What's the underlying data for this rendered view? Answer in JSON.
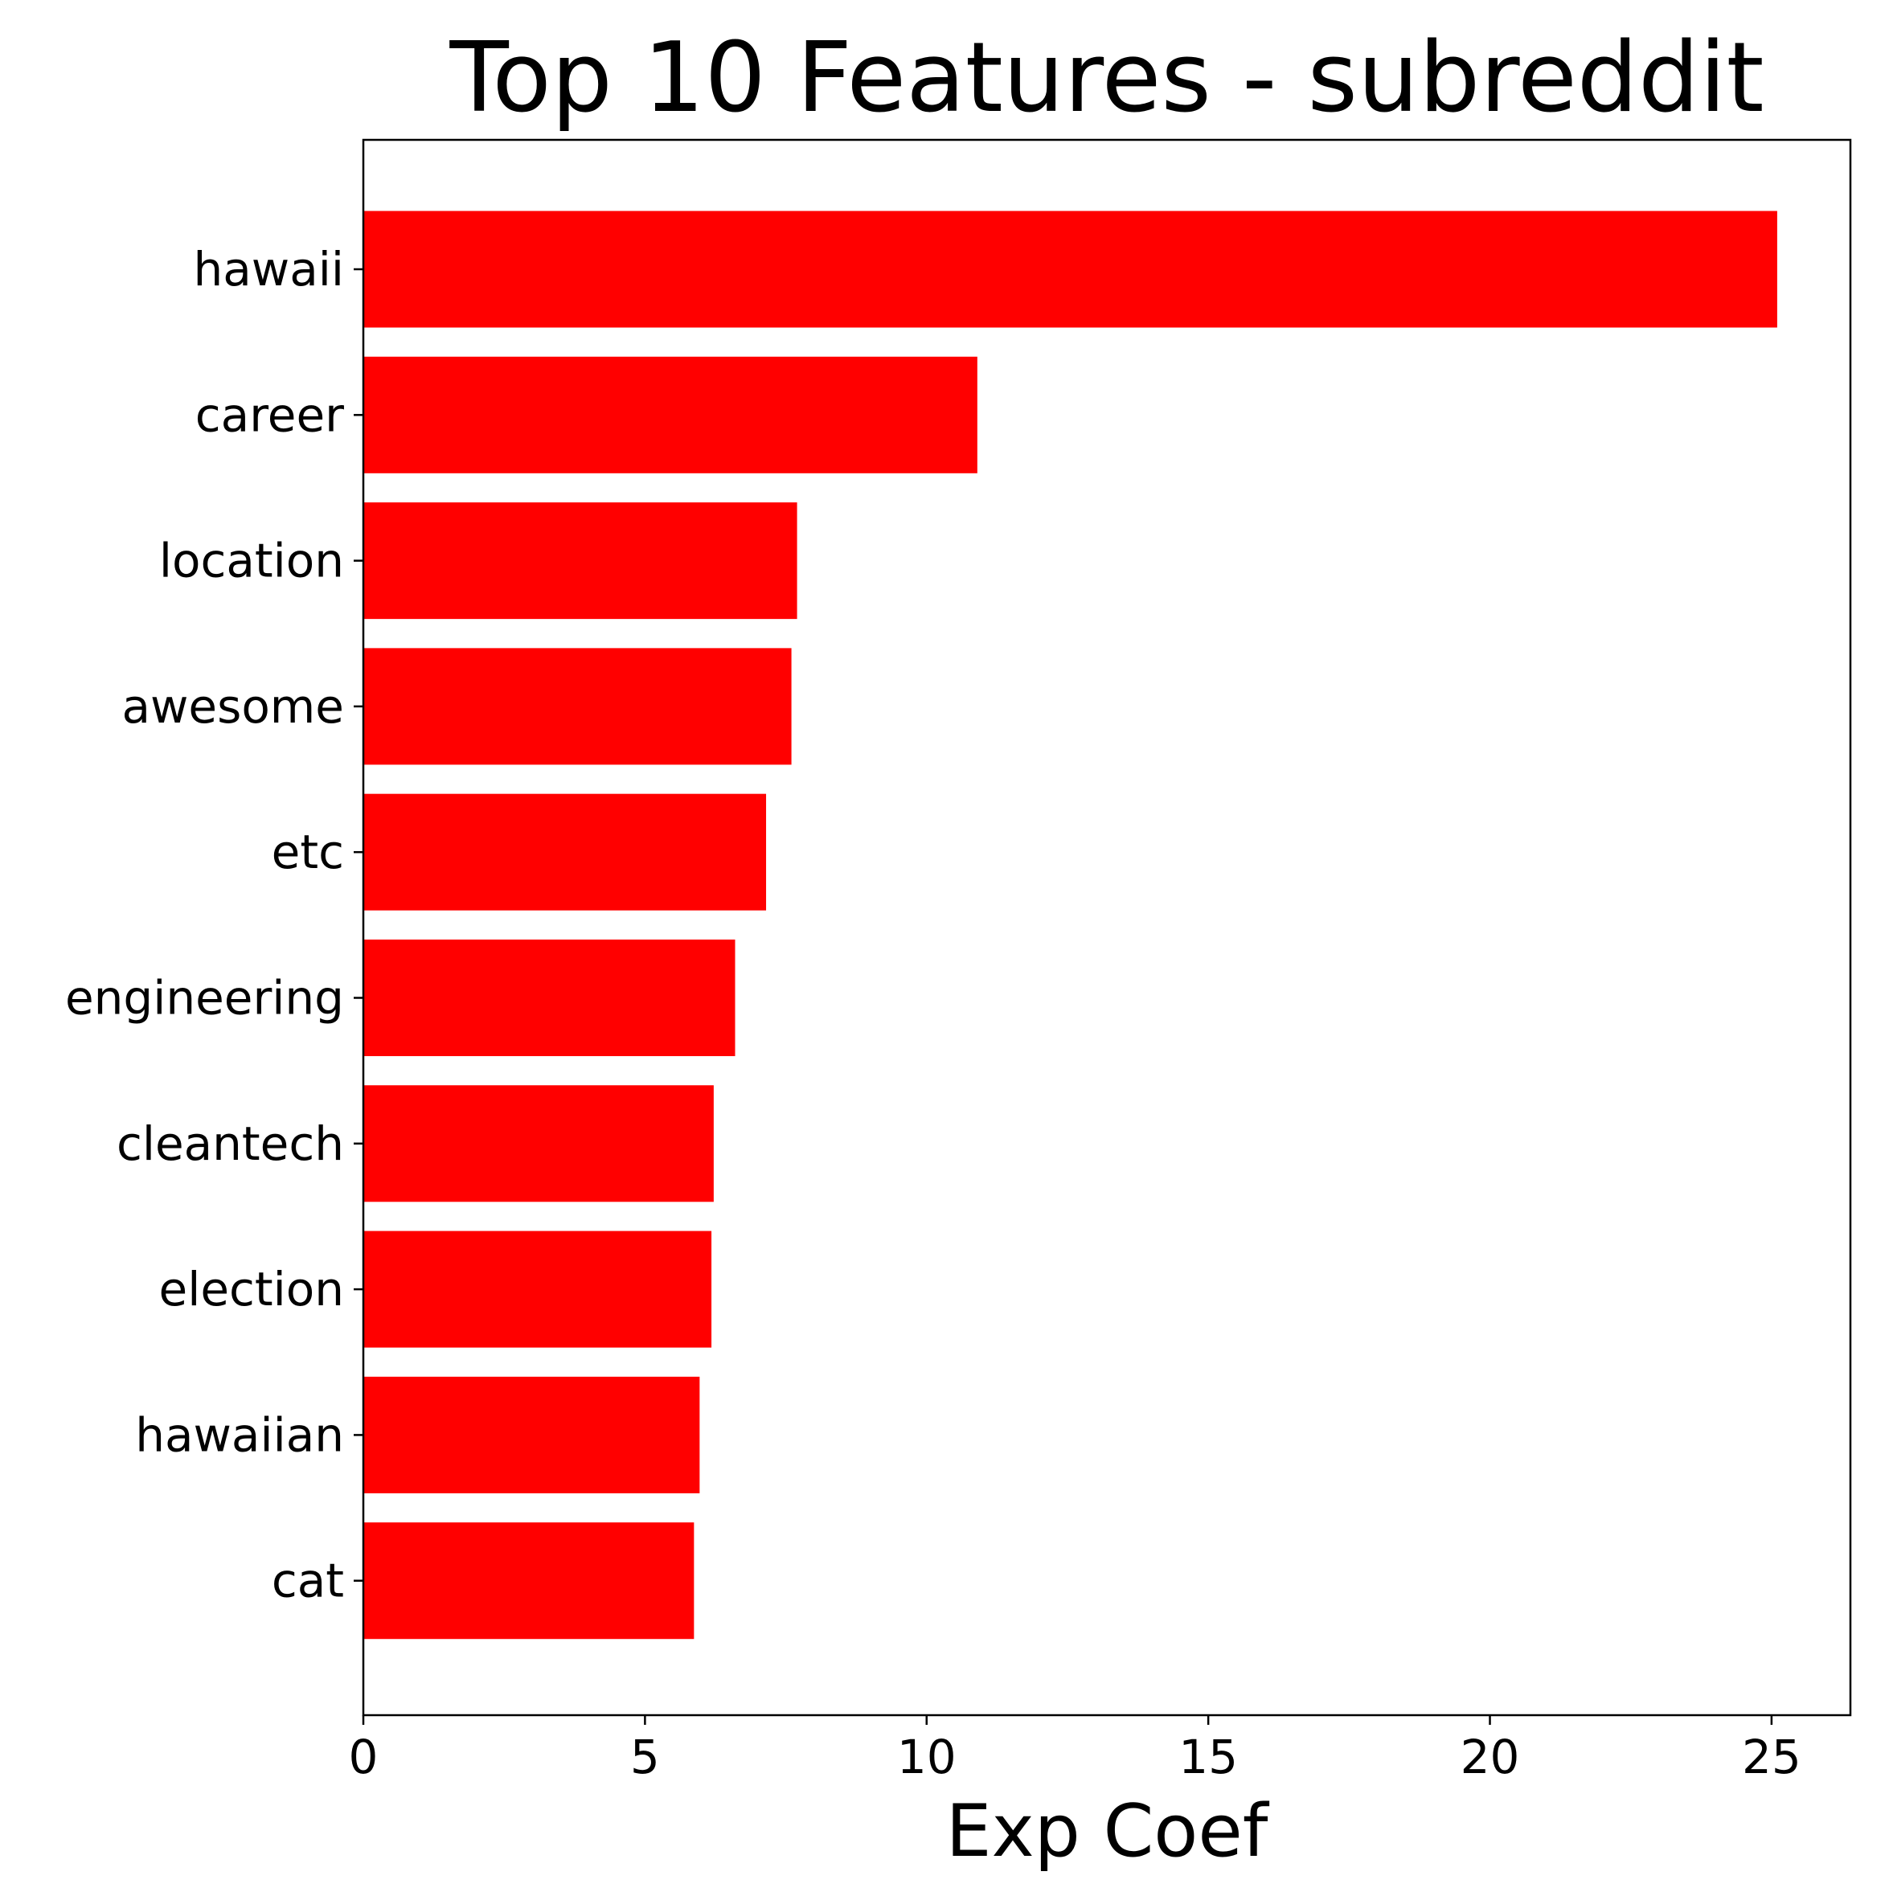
{
  "chart_data": {
    "type": "bar",
    "orientation": "horizontal",
    "title": "Top 10 Features - subreddit",
    "xlabel": "Exp Coef",
    "ylabel": "",
    "categories": [
      "hawaii",
      "career",
      "location",
      "awesome",
      "etc",
      "engineering",
      "cleantech",
      "election",
      "hawaiian",
      "cat"
    ],
    "values": [
      25.1,
      10.9,
      7.7,
      7.6,
      7.15,
      6.6,
      6.22,
      6.18,
      5.97,
      5.87
    ],
    "xlim": [
      0,
      26.4
    ],
    "xticks": [
      0,
      5,
      10,
      15,
      20,
      25
    ],
    "xtick_labels": [
      "0",
      "5",
      "10",
      "15",
      "20",
      "25"
    ],
    "bar_color": "#ff0000",
    "grid": false,
    "legend": "none"
  }
}
